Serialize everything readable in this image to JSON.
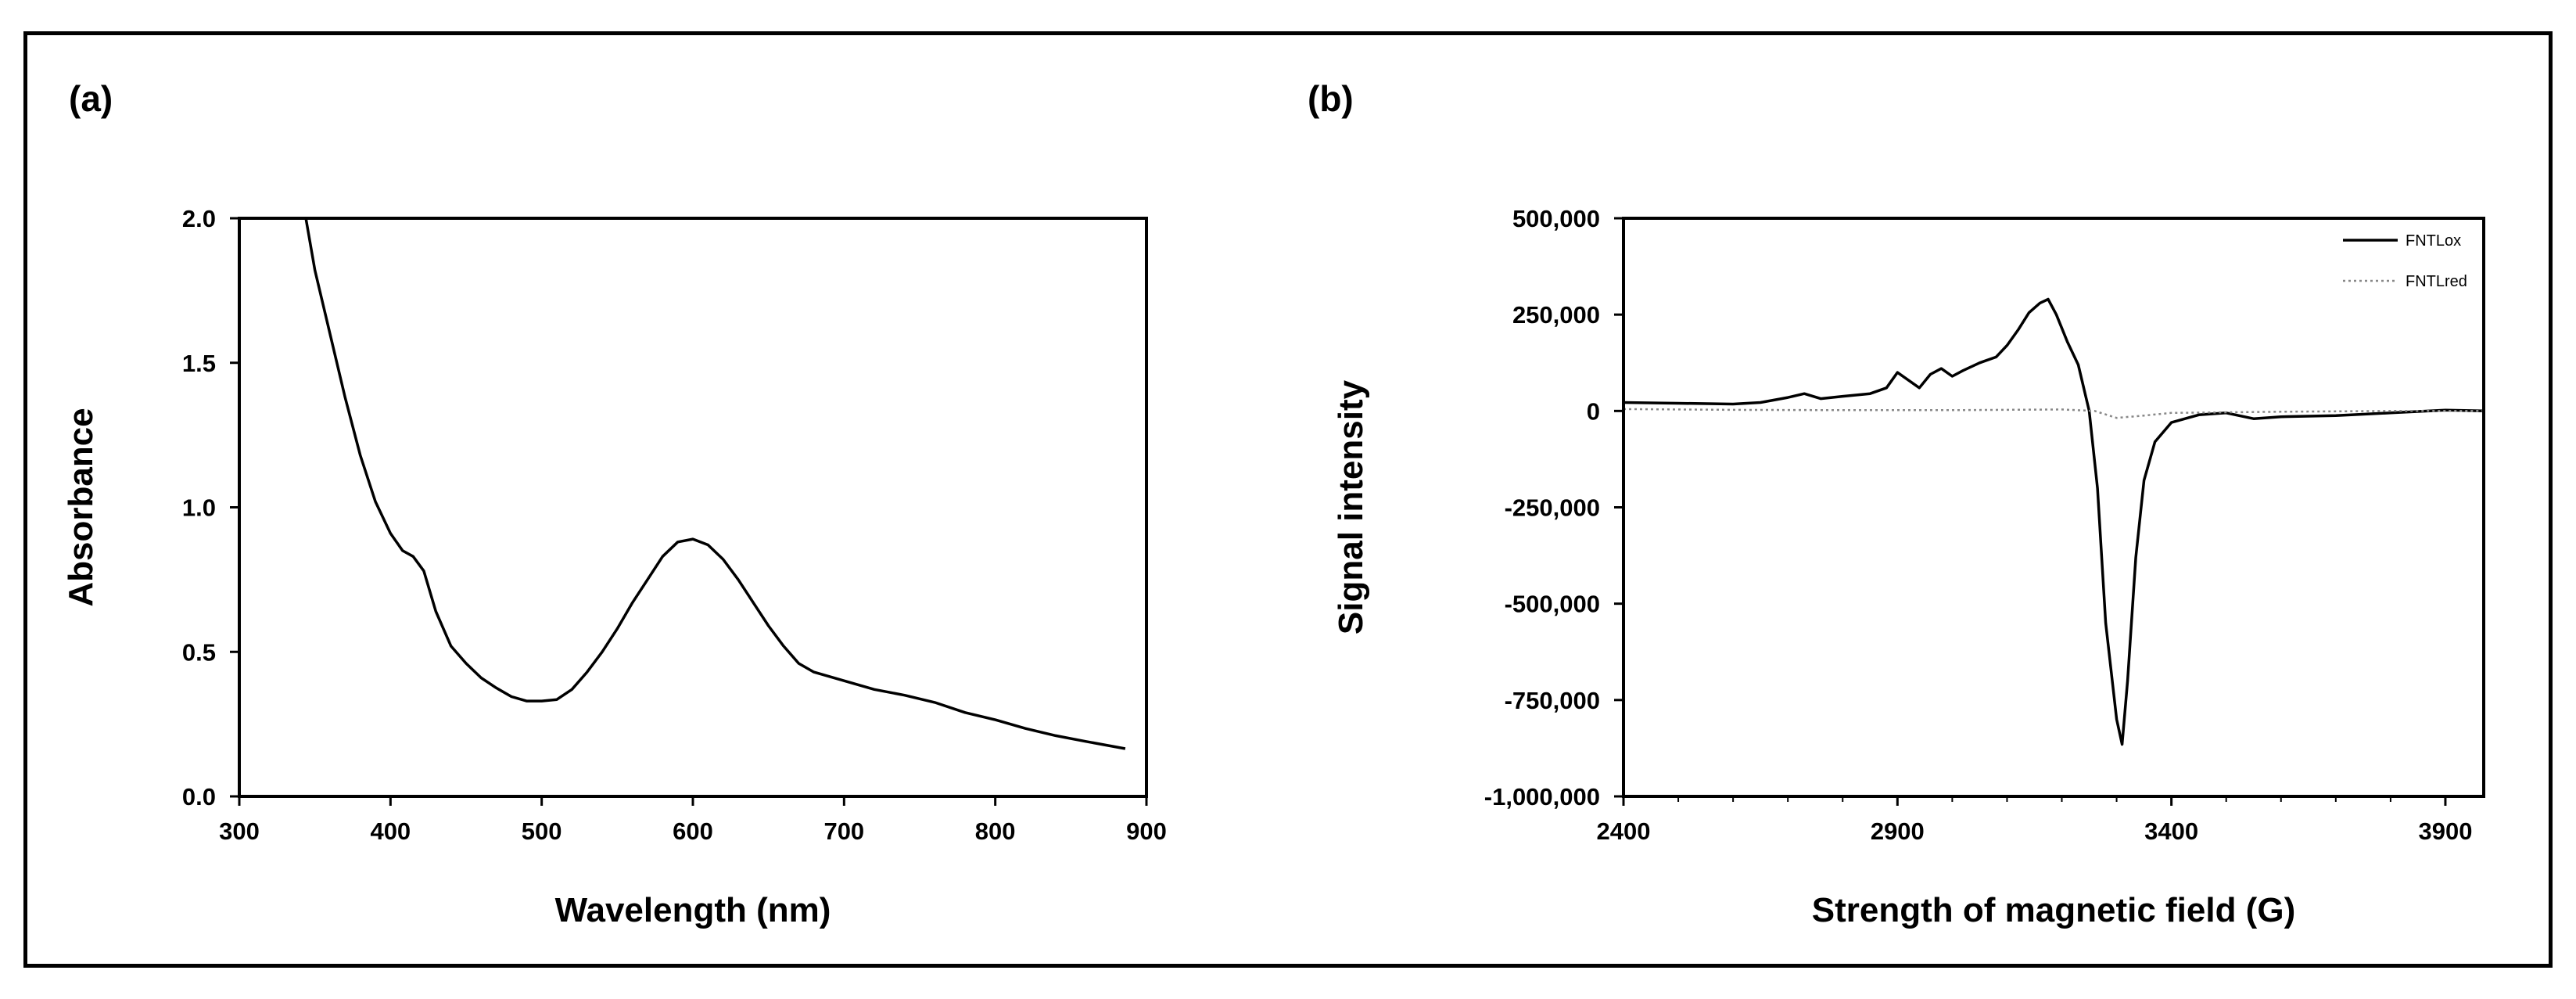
{
  "chart_data": [
    {
      "panel": "(a)",
      "type": "line",
      "xlabel": "Wavelength (nm)",
      "ylabel": "Absorbance",
      "xlim": [
        300,
        900
      ],
      "ylim": [
        0,
        2.0
      ],
      "xticks": [
        "300",
        "400",
        "500",
        "600",
        "700",
        "800",
        "900"
      ],
      "yticks": [
        "0.0",
        "0.5",
        "1.0",
        "1.5",
        "2.0"
      ],
      "series": [
        {
          "color": "#000000",
          "style": "solid",
          "points": [
            [
              344,
              2.0
            ],
            [
              350,
              1.82
            ],
            [
              360,
              1.6
            ],
            [
              370,
              1.38
            ],
            [
              380,
              1.18
            ],
            [
              390,
              1.02
            ],
            [
              400,
              0.91
            ],
            [
              408,
              0.85
            ],
            [
              415,
              0.83
            ],
            [
              422,
              0.78
            ],
            [
              430,
              0.64
            ],
            [
              440,
              0.52
            ],
            [
              450,
              0.46
            ],
            [
              460,
              0.41
            ],
            [
              470,
              0.375
            ],
            [
              480,
              0.345
            ],
            [
              490,
              0.33
            ],
            [
              500,
              0.33
            ],
            [
              510,
              0.335
            ],
            [
              520,
              0.37
            ],
            [
              530,
              0.43
            ],
            [
              540,
              0.5
            ],
            [
              550,
              0.58
            ],
            [
              560,
              0.67
            ],
            [
              570,
              0.75
            ],
            [
              580,
              0.83
            ],
            [
              590,
              0.88
            ],
            [
              600,
              0.89
            ],
            [
              610,
              0.87
            ],
            [
              620,
              0.82
            ],
            [
              630,
              0.75
            ],
            [
              640,
              0.67
            ],
            [
              650,
              0.59
            ],
            [
              660,
              0.52
            ],
            [
              670,
              0.46
            ],
            [
              680,
              0.43
            ],
            [
              700,
              0.4
            ],
            [
              720,
              0.37
            ],
            [
              740,
              0.35
            ],
            [
              760,
              0.325
            ],
            [
              780,
              0.29
            ],
            [
              800,
              0.265
            ],
            [
              820,
              0.235
            ],
            [
              840,
              0.21
            ],
            [
              860,
              0.19
            ],
            [
              886,
              0.165
            ]
          ]
        }
      ]
    },
    {
      "panel": "(b)",
      "type": "line",
      "xlabel": "Strength of magnetic field (G)",
      "ylabel": "Signal intensity",
      "xlim": [
        2400,
        3970
      ],
      "ylim": [
        -1000000,
        500000
      ],
      "xticks": [
        "2400",
        "2900",
        "3400",
        "3900"
      ],
      "xtick_values": [
        2400,
        2900,
        3400,
        3900
      ],
      "yticks": [
        "-1,000,000",
        "-750,000",
        "-500,000",
        "-250,000",
        "0",
        "250,000",
        "500,000"
      ],
      "ytick_values": [
        -1000000,
        -750000,
        -500000,
        -250000,
        0,
        250000,
        500000
      ],
      "legend": {
        "position": "top-right"
      },
      "series": [
        {
          "name": "FNTLox",
          "color": "#000000",
          "style": "solid",
          "points": [
            [
              2400,
              22000
            ],
            [
              2500,
              20000
            ],
            [
              2600,
              18000
            ],
            [
              2650,
              22000
            ],
            [
              2700,
              35000
            ],
            [
              2730,
              45000
            ],
            [
              2760,
              32000
            ],
            [
              2800,
              38000
            ],
            [
              2850,
              45000
            ],
            [
              2880,
              60000
            ],
            [
              2900,
              100000
            ],
            [
              2920,
              80000
            ],
            [
              2940,
              60000
            ],
            [
              2960,
              95000
            ],
            [
              2980,
              110000
            ],
            [
              3000,
              90000
            ],
            [
              3020,
              105000
            ],
            [
              3050,
              125000
            ],
            [
              3080,
              140000
            ],
            [
              3100,
              170000
            ],
            [
              3120,
              210000
            ],
            [
              3140,
              255000
            ],
            [
              3160,
              280000
            ],
            [
              3175,
              290000
            ],
            [
              3190,
              250000
            ],
            [
              3210,
              180000
            ],
            [
              3230,
              120000
            ],
            [
              3250,
              0
            ],
            [
              3265,
              -200000
            ],
            [
              3280,
              -550000
            ],
            [
              3300,
              -800000
            ],
            [
              3310,
              -865000
            ],
            [
              3320,
              -700000
            ],
            [
              3335,
              -380000
            ],
            [
              3350,
              -180000
            ],
            [
              3370,
              -80000
            ],
            [
              3400,
              -30000
            ],
            [
              3450,
              -10000
            ],
            [
              3500,
              -5000
            ],
            [
              3550,
              -20000
            ],
            [
              3600,
              -15000
            ],
            [
              3700,
              -12000
            ],
            [
              3800,
              -5000
            ],
            [
              3900,
              2000
            ],
            [
              3970,
              0
            ]
          ]
        },
        {
          "name": "FNTLred",
          "color": "#888888",
          "style": "dotted",
          "points": [
            [
              2400,
              5000
            ],
            [
              2600,
              3000
            ],
            [
              2800,
              2000
            ],
            [
              3000,
              2000
            ],
            [
              3200,
              4000
            ],
            [
              3260,
              0
            ],
            [
              3300,
              -18000
            ],
            [
              3350,
              -12000
            ],
            [
              3400,
              -5000
            ],
            [
              3600,
              -2000
            ],
            [
              3800,
              0
            ],
            [
              3970,
              0
            ]
          ]
        }
      ]
    }
  ]
}
